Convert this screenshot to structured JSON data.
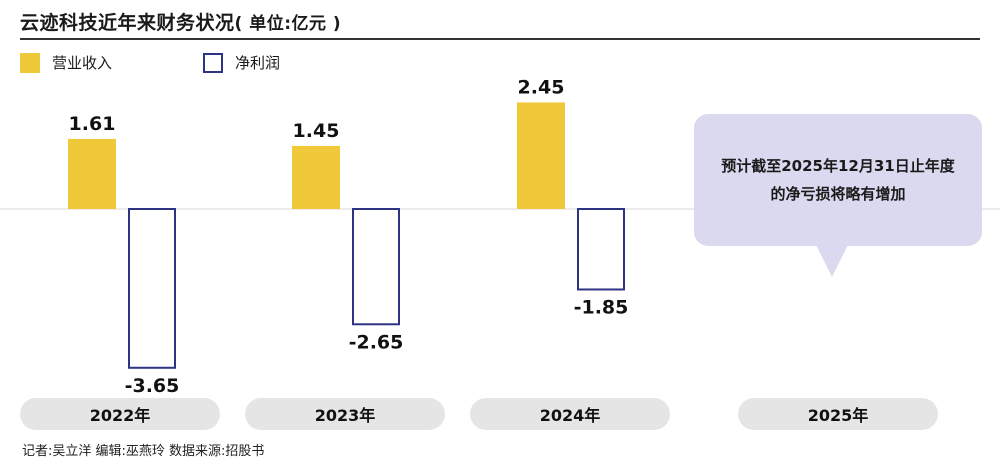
{
  "title": "云迹科技近年来财务状况",
  "title_unit": "( 单位:亿元 )",
  "legend": {
    "revenue": "营业收入",
    "net_profit": "净利润"
  },
  "colors": {
    "revenue": "#efc93a",
    "net_profit_border": "#2f3383",
    "callout": "#dad9ef",
    "pill": "#e5e5e5"
  },
  "years": [
    "2022年",
    "2023年",
    "2024年",
    "2025年"
  ],
  "callout_text": "预计截至2025年12月31日止年度的净亏损将略有增加",
  "credit": "记者:吴立洋  编辑:巫燕玲  数据来源:招股书",
  "chart_data": {
    "type": "bar",
    "categories": [
      "2022年",
      "2023年",
      "2024年",
      "2025年"
    ],
    "series": [
      {
        "name": "营业收入",
        "values": [
          1.61,
          1.45,
          2.45,
          null
        ]
      },
      {
        "name": "净利润",
        "values": [
          -3.65,
          -2.65,
          -1.85,
          null
        ]
      }
    ],
    "value_labels": {
      "营业收入": [
        "1.61",
        "1.45",
        "2.45"
      ],
      "净利润": [
        "-3.65",
        "-2.65",
        "-1.85"
      ]
    },
    "legend_position": "top-left",
    "grid": false
  }
}
